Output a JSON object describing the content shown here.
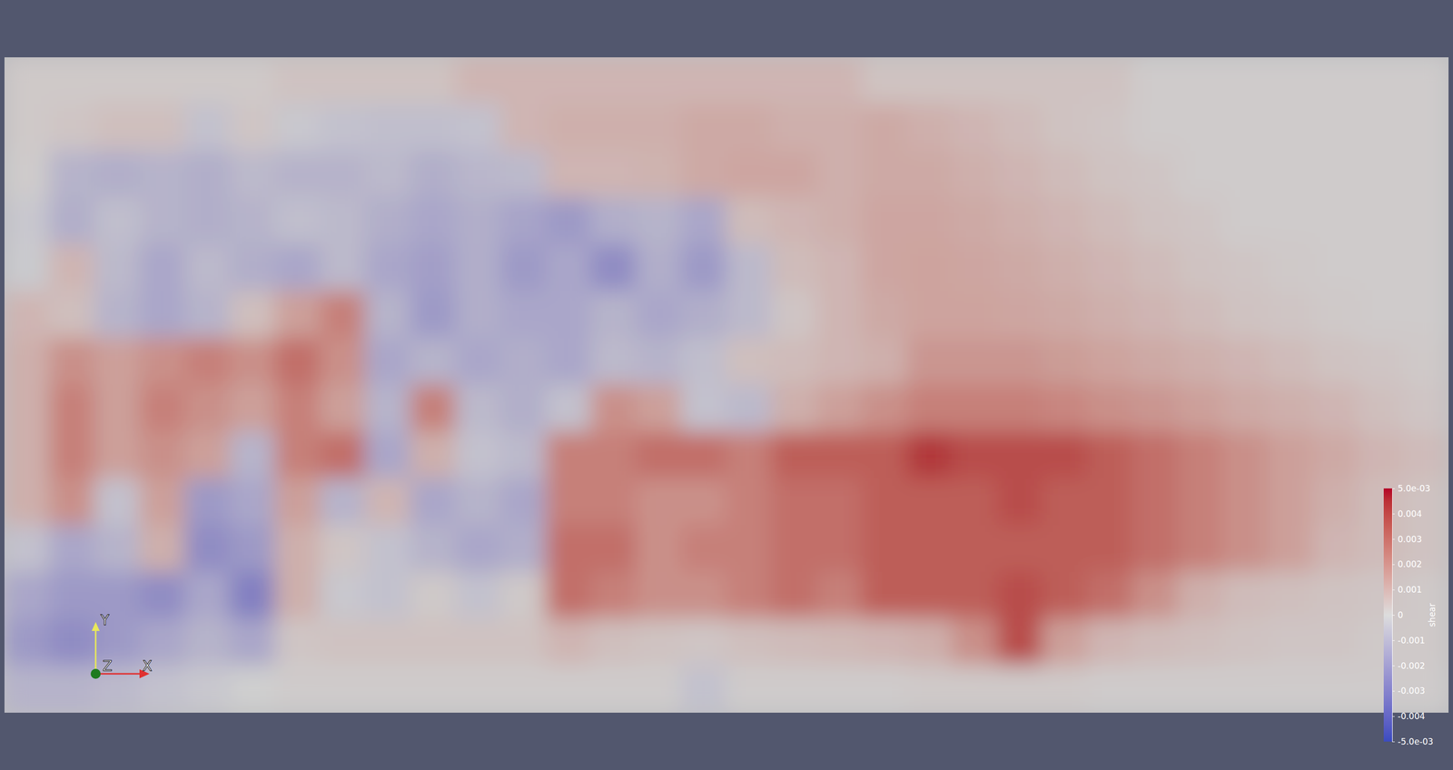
{
  "chart_data": {
    "type": "heatmap",
    "tick_labels": false,
    "annotations": [
      "Y",
      "Z",
      "X"
    ],
    "colorbar": {
      "title": "shear",
      "range": [
        -0.005,
        0.005
      ],
      "ticks": [
        {
          "value": -0.005,
          "label": "-5.0e-03"
        },
        -0.004,
        -0.003,
        -0.002,
        -0.001,
        0,
        0.001,
        0.002,
        0.003,
        0.004,
        {
          "value": 0.005,
          "label": "5.0e-03"
        }
      ]
    },
    "cells": [
      [
        0.0002,
        0.0002,
        0.0002,
        0.0002,
        0.0002,
        0.0002,
        0.0004,
        0.0004,
        0.0004,
        0.0004,
        0.0008,
        0.0008,
        0.0008,
        0.0008,
        0.0008,
        0.0008,
        0.0008,
        0.0008,
        0.0008,
        0.0004,
        0.0004,
        0.0004,
        0.0004,
        0.0004,
        0.0004,
        0.0001,
        0.0001,
        0.0001,
        0.0001,
        0.0001,
        0.0001,
        0.0001
      ],
      [
        0.0002,
        0.0003,
        0.0005,
        0.0005,
        -0.0005,
        0.0003,
        -0.0003,
        -0.0005,
        -0.0006,
        -0.0006,
        -0.0005,
        0.0008,
        0.001,
        0.001,
        0.001,
        0.0012,
        0.0012,
        0.001,
        0.001,
        0.0012,
        0.001,
        0.0008,
        0.0006,
        0.0004,
        0.0003,
        0.0001,
        0.0001,
        0.0001,
        0.0001,
        0.0001,
        0.0001,
        0.0001
      ],
      [
        0.0001,
        -0.001,
        -0.0012,
        -0.001,
        -0.0012,
        -0.0008,
        -0.001,
        -0.001,
        -0.0008,
        -0.0012,
        -0.0009,
        -0.0008,
        0.0008,
        0.0008,
        0.0009,
        0.0012,
        0.0013,
        0.0013,
        0.001,
        0.0012,
        0.0012,
        0.001,
        0.0008,
        0.0006,
        0.0004,
        0.0003,
        0.0001,
        0.0001,
        0.0001,
        0.0001,
        0.0001,
        0.0001
      ],
      [
        -0.0003,
        -0.0012,
        -0.0006,
        -0.001,
        -0.0012,
        -0.001,
        -0.0006,
        -0.0008,
        -0.0012,
        -0.0015,
        -0.0012,
        -0.0016,
        -0.002,
        -0.0012,
        -0.001,
        -0.0015,
        0.0006,
        0.0008,
        0.001,
        0.0013,
        0.0013,
        0.0012,
        0.001,
        0.0008,
        0.0006,
        0.0004,
        0.0003,
        0.0001,
        0.0001,
        0.0001,
        0.0001,
        0.0001
      ],
      [
        -0.0002,
        0.0008,
        -0.0008,
        -0.0015,
        -0.0008,
        -0.0012,
        -0.0015,
        -0.0008,
        -0.0015,
        -0.0018,
        -0.0012,
        -0.002,
        -0.0015,
        -0.0025,
        -0.0012,
        -0.002,
        -0.0008,
        0.0006,
        0.0008,
        0.0013,
        0.0014,
        0.0013,
        0.0012,
        0.001,
        0.0008,
        0.0006,
        0.0004,
        0.0003,
        0.0002,
        0.0001,
        0.0001,
        0.0001
      ],
      [
        0.0008,
        0.0005,
        -0.001,
        -0.0015,
        -0.001,
        0.0005,
        0.0015,
        0.0025,
        -0.001,
        -0.002,
        -0.0012,
        -0.0015,
        -0.0015,
        -0.001,
        -0.0015,
        -0.0012,
        -0.0008,
        0.0003,
        0.0008,
        0.0012,
        0.0014,
        0.0014,
        0.0013,
        0.0012,
        0.001,
        0.0008,
        0.0006,
        0.0004,
        0.0003,
        0.0002,
        0.0001,
        0.0001
      ],
      [
        0.001,
        0.002,
        0.0015,
        0.002,
        0.0025,
        0.002,
        0.003,
        0.002,
        -0.0015,
        -0.001,
        -0.0015,
        -0.0012,
        -0.0015,
        -0.0008,
        -0.001,
        -0.0006,
        0.0005,
        0.0006,
        0.0008,
        0.001,
        0.0018,
        0.0018,
        0.0018,
        0.0016,
        0.0014,
        0.0012,
        0.001,
        0.0008,
        0.0006,
        0.0004,
        0.0003,
        0.0002
      ],
      [
        0.001,
        0.0025,
        0.0015,
        0.0025,
        0.002,
        0.0015,
        0.0025,
        0.0015,
        -0.001,
        0.0025,
        -0.0008,
        -0.0012,
        -0.0005,
        0.002,
        0.0015,
        -0.0005,
        -0.0008,
        0.001,
        0.0015,
        0.002,
        0.0025,
        0.0025,
        0.0025,
        0.0023,
        0.002,
        0.0018,
        0.0015,
        0.0012,
        0.001,
        0.0008,
        0.0005,
        0.0003
      ],
      [
        0.001,
        0.0025,
        0.0015,
        0.002,
        0.0015,
        -0.001,
        0.0025,
        0.003,
        -0.0015,
        0.001,
        -0.0005,
        -0.0008,
        0.0025,
        0.0025,
        0.003,
        0.003,
        0.0025,
        0.0035,
        0.0035,
        0.0035,
        0.0045,
        0.004,
        0.004,
        0.004,
        0.0035,
        0.003,
        0.0025,
        0.002,
        0.0015,
        0.0012,
        0.0008,
        0.0006
      ],
      [
        0.001,
        0.002,
        -0.0005,
        0.0015,
        -0.002,
        -0.0015,
        0.0015,
        -0.001,
        0.0008,
        -0.0015,
        -0.001,
        -0.0015,
        0.0025,
        0.0025,
        0.002,
        0.002,
        0.0025,
        0.003,
        0.003,
        0.0035,
        0.0035,
        0.0035,
        0.004,
        0.0035,
        0.0035,
        0.003,
        0.0025,
        0.002,
        0.0015,
        0.001,
        0.0006,
        0.0004
      ],
      [
        -0.0005,
        -0.0015,
        -0.001,
        0.001,
        -0.0025,
        -0.002,
        0.001,
        0.0003,
        -0.0005,
        -0.001,
        -0.0015,
        -0.0012,
        0.003,
        0.003,
        0.002,
        0.0025,
        0.0025,
        0.003,
        0.003,
        0.0035,
        0.0035,
        0.0035,
        0.0035,
        0.0035,
        0.0035,
        0.003,
        0.0025,
        0.002,
        0.0015,
        0.0008,
        0.0006,
        0.0004
      ],
      [
        -0.0015,
        -0.002,
        -0.002,
        -0.0025,
        -0.0015,
        -0.003,
        0.001,
        -0.0003,
        -0.0005,
        0.0002,
        -0.0005,
        0.0002,
        0.003,
        0.0025,
        0.002,
        0.002,
        0.0025,
        0.003,
        0.0025,
        0.0035,
        0.0035,
        0.0035,
        0.004,
        0.0035,
        0.003,
        0.002,
        0.001,
        0.0006,
        0.0005,
        0.0004,
        0.0003,
        0.0002
      ],
      [
        -0.002,
        -0.0025,
        -0.002,
        -0.0015,
        -0.001,
        -0.0015,
        0.0003,
        0.0004,
        0.0004,
        0.0004,
        0.0004,
        0.0004,
        0.0008,
        0.0005,
        0.0004,
        0.0003,
        0.0005,
        0.0006,
        0.0007,
        0.0008,
        0.001,
        0.002,
        0.004,
        0.0015,
        0.0008,
        0.0006,
        0.0005,
        0.0004,
        0.0003,
        0.0003,
        0.0002,
        0.0002
      ],
      [
        -0.001,
        -0.001,
        -0.0008,
        -0.0005,
        -0.0003,
        0,
        0.0001,
        0.0001,
        0.0001,
        0.0001,
        0.0001,
        0.0001,
        0.0001,
        0.0001,
        0.0001,
        -0.0005,
        0.0001,
        0.0001,
        0.0001,
        0.0001,
        0.0002,
        0.0002,
        0.0002,
        0.0002,
        0.0001,
        0.0001,
        0.0001,
        0.0001,
        0.0001,
        0.0001,
        0.0001,
        0.0001
      ]
    ]
  }
}
